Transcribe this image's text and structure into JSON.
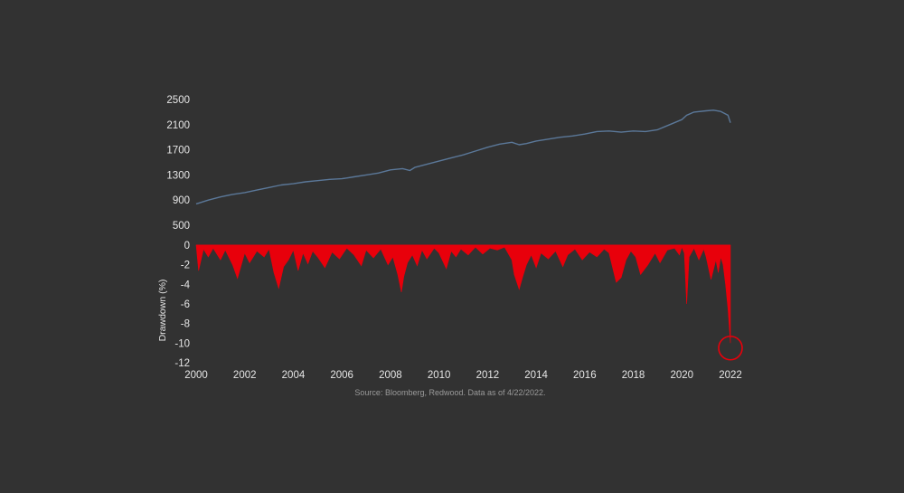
{
  "colors": {
    "background": "#323232",
    "index_line": "#5b7899",
    "drawdown_fill": "#e8000b",
    "highlight_circle": "#e8000b",
    "text": "#e6e6e6",
    "source_text": "#9a9a9a"
  },
  "chart_data": [
    {
      "type": "line",
      "ylim": [
        500,
        2500
      ],
      "yticks": [
        "2500",
        "2100",
        "1700",
        "1300",
        "900",
        "500"
      ],
      "ytick_values": [
        2500,
        2100,
        1700,
        1300,
        900,
        500
      ],
      "xlim": [
        2000,
        2022
      ],
      "series": [
        {
          "x": [
            2000.0,
            2000.5,
            2001.0,
            2001.5,
            2002.0,
            2002.5,
            2003.0,
            2003.5,
            2004.0,
            2004.5,
            2005.0,
            2005.5,
            2006.0,
            2006.5,
            2007.0,
            2007.5,
            2008.0,
            2008.5,
            2008.8,
            2009.0,
            2009.5,
            2010.0,
            2010.5,
            2011.0,
            2011.5,
            2012.0,
            2012.5,
            2013.0,
            2013.3,
            2013.6,
            2014.0,
            2014.5,
            2015.0,
            2015.5,
            2016.0,
            2016.5,
            2017.0,
            2017.5,
            2018.0,
            2018.5,
            2019.0,
            2019.5,
            2020.0,
            2020.2,
            2020.5,
            2021.0,
            2021.3,
            2021.6,
            2021.9,
            2022.0
          ],
          "y": [
            840,
            900,
            950,
            990,
            1020,
            1060,
            1100,
            1140,
            1160,
            1190,
            1210,
            1230,
            1240,
            1270,
            1300,
            1330,
            1380,
            1400,
            1370,
            1420,
            1470,
            1520,
            1570,
            1620,
            1680,
            1740,
            1790,
            1820,
            1780,
            1800,
            1840,
            1870,
            1900,
            1920,
            1950,
            1990,
            2000,
            1980,
            2000,
            1990,
            2020,
            2100,
            2180,
            2250,
            2300,
            2320,
            2330,
            2310,
            2250,
            2130
          ]
        }
      ]
    },
    {
      "type": "area",
      "ylabel": "Drawdown (%)",
      "ylim": [
        -12,
        0
      ],
      "yticks": [
        "0",
        "-2",
        "-4",
        "-6",
        "-8",
        "-10",
        "-12"
      ],
      "ytick_values": [
        0,
        -2,
        -4,
        -6,
        -8,
        -10,
        -12
      ],
      "xlim": [
        2000,
        2022
      ],
      "xticks": [
        "2000",
        "2002",
        "2004",
        "2006",
        "2008",
        "2010",
        "2012",
        "2014",
        "2016",
        "2018",
        "2020",
        "2022"
      ],
      "xtick_values": [
        2000,
        2002,
        2004,
        2006,
        2008,
        2010,
        2012,
        2014,
        2016,
        2018,
        2020,
        2022
      ],
      "series": [
        {
          "x": [
            2000.0,
            2000.1,
            2000.3,
            2000.5,
            2000.7,
            2001.0,
            2001.2,
            2001.5,
            2001.7,
            2002.0,
            2002.2,
            2002.5,
            2002.8,
            2003.0,
            2003.2,
            2003.4,
            2003.6,
            2003.8,
            2004.0,
            2004.2,
            2004.4,
            2004.6,
            2004.8,
            2005.0,
            2005.3,
            2005.6,
            2005.9,
            2006.2,
            2006.5,
            2006.8,
            2007.0,
            2007.3,
            2007.6,
            2007.9,
            2008.1,
            2008.3,
            2008.45,
            2008.55,
            2008.7,
            2008.9,
            2009.1,
            2009.3,
            2009.5,
            2009.8,
            2010.0,
            2010.3,
            2010.5,
            2010.7,
            2010.9,
            2011.2,
            2011.5,
            2011.8,
            2012.1,
            2012.4,
            2012.7,
            2013.0,
            2013.1,
            2013.3,
            2013.45,
            2013.6,
            2013.8,
            2014.0,
            2014.2,
            2014.5,
            2014.8,
            2015.1,
            2015.3,
            2015.6,
            2015.9,
            2016.2,
            2016.5,
            2016.8,
            2017.0,
            2017.3,
            2017.5,
            2017.7,
            2017.9,
            2018.1,
            2018.3,
            2018.6,
            2018.9,
            2019.1,
            2019.4,
            2019.7,
            2019.9,
            2020.0,
            2020.1,
            2020.2,
            2020.3,
            2020.5,
            2020.7,
            2020.9,
            2021.0,
            2021.2,
            2021.4,
            2021.5,
            2021.6,
            2021.7,
            2021.8,
            2021.9,
            2022.0
          ],
          "y": [
            0,
            -2.6,
            -0.4,
            -1.2,
            -0.3,
            -1.5,
            -0.5,
            -2.0,
            -3.4,
            -0.8,
            -1.8,
            -0.6,
            -1.2,
            -0.4,
            -2.8,
            -4.4,
            -2.2,
            -1.5,
            -0.5,
            -2.6,
            -0.8,
            -1.9,
            -0.6,
            -1.2,
            -2.3,
            -0.7,
            -1.4,
            -0.3,
            -1.0,
            -2.1,
            -0.5,
            -1.3,
            -0.4,
            -2.0,
            -1.2,
            -3.0,
            -4.8,
            -3.2,
            -1.8,
            -1.0,
            -2.1,
            -0.5,
            -1.4,
            -0.3,
            -0.8,
            -2.4,
            -0.6,
            -1.2,
            -0.4,
            -1.0,
            -0.2,
            -0.9,
            -0.3,
            -0.5,
            -0.2,
            -1.5,
            -3.0,
            -4.5,
            -3.2,
            -2.0,
            -1.0,
            -2.3,
            -0.8,
            -1.4,
            -0.6,
            -2.2,
            -1.0,
            -0.4,
            -1.5,
            -0.7,
            -1.2,
            -0.4,
            -0.8,
            -3.8,
            -3.3,
            -1.5,
            -0.6,
            -1.2,
            -3.0,
            -2.0,
            -0.8,
            -1.8,
            -0.5,
            -0.3,
            -1.0,
            -0.2,
            -0.8,
            -6.0,
            -1.2,
            -0.3,
            -1.5,
            -0.4,
            -1.2,
            -3.5,
            -1.5,
            -2.8,
            -1.2,
            -2.0,
            -4.0,
            -6.5,
            -10.0
          ]
        }
      ],
      "annotations": [
        {
          "type": "circle",
          "x": 2022.0,
          "y": -10.5
        }
      ]
    }
  ],
  "source_note": "Source: Bloomberg, Redwood. Data as of 4/22/2022."
}
